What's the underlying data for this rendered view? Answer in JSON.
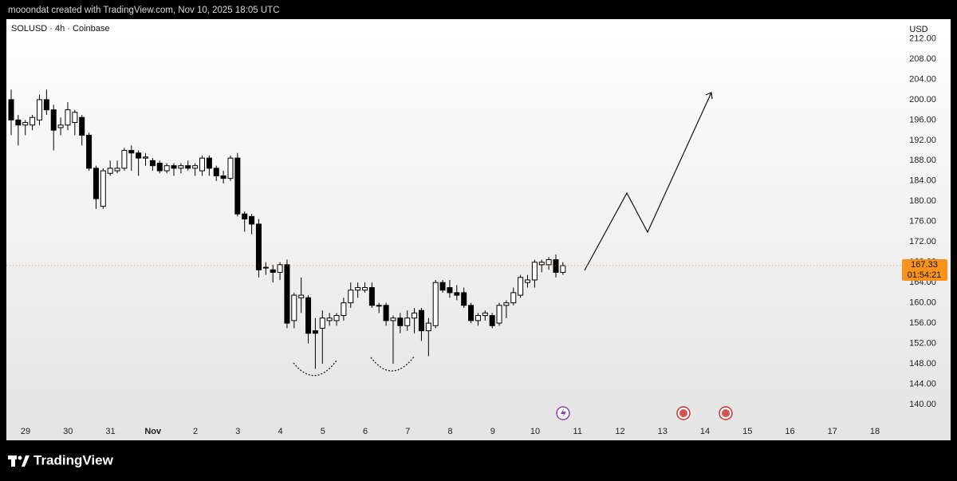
{
  "header": {
    "caption": "mooondat created with TradingView.com, Nov 10, 2025 18:05 UTC"
  },
  "chart_data": {
    "type": "candlestick",
    "title": "SOLUSD · 4h · Coinbase",
    "y_axis_label": "USD",
    "categories": [
      "29",
      "30",
      "31",
      "Nov",
      "2",
      "3",
      "4",
      "5",
      "6",
      "7",
      "8",
      "9",
      "10",
      "11",
      "12",
      "13",
      "14",
      "15",
      "16",
      "17",
      "18"
    ],
    "open": [
      200,
      196,
      195,
      195,
      196,
      200,
      198,
      194.5,
      195,
      195.5,
      196.5,
      193,
      186.5,
      179,
      185.5,
      186,
      186.5,
      190,
      189.5,
      188.5,
      188,
      187.5,
      186,
      187,
      186.5,
      187,
      186.5,
      186,
      188.5,
      186.5,
      185,
      184.5,
      188.5,
      177.5,
      177,
      175.5,
      167,
      166.5,
      166,
      167.5,
      156.5,
      161,
      161,
      154.5,
      155,
      156.5,
      156.5,
      157.5,
      160,
      162.5,
      162.5,
      163,
      159.5,
      159.5,
      156.5,
      157,
      155.5,
      157,
      158.5,
      154.5,
      155.5,
      164,
      163,
      162,
      162,
      159.5,
      156.5,
      157.5,
      157.5,
      156,
      159.5,
      160,
      161.5,
      164,
      164.5,
      167.5,
      167.5,
      168.5,
      166
    ],
    "high": [
      202,
      197,
      196,
      197,
      201,
      202,
      199,
      196.5,
      199.5,
      198,
      197,
      193.5,
      187,
      186.5,
      188,
      188,
      190.5,
      191,
      190,
      189.5,
      188.5,
      188,
      187.5,
      187.5,
      187.5,
      188,
      187.5,
      189,
      189,
      187,
      186,
      189,
      189.5,
      178,
      177.5,
      176.5,
      168,
      167.5,
      168,
      168.5,
      162,
      165,
      161.5,
      157,
      158.5,
      158,
      158,
      161,
      164,
      164,
      164,
      164,
      160,
      160,
      157.5,
      158,
      158.5,
      159,
      159,
      157,
      164.5,
      164.5,
      164.5,
      163.5,
      163,
      160,
      158,
      158.5,
      158,
      160,
      160.5,
      163,
      165.5,
      165.5,
      168.5,
      168.5,
      169,
      169.5,
      168
    ],
    "low": [
      193,
      191,
      193,
      194,
      195,
      197,
      190,
      193,
      194,
      193,
      191,
      186,
      178.5,
      178.5,
      185,
      185.5,
      186,
      186,
      185,
      187,
      186,
      185.5,
      185.5,
      185,
      185.5,
      186,
      185,
      185,
      185,
      184,
      183.5,
      184,
      177,
      174,
      173.5,
      165,
      165.5,
      164,
      164.5,
      155,
      155,
      158,
      152,
      147,
      148,
      155.5,
      155.5,
      156.5,
      159,
      161,
      162,
      159,
      158,
      155.5,
      148,
      154,
      154.5,
      154,
      152.5,
      149.5,
      155,
      162,
      161,
      160.5,
      159,
      156,
      155.5,
      156.5,
      155,
      155.5,
      157,
      159.5,
      161,
      163,
      163,
      166,
      166.5,
      165,
      165.5
    ],
    "close": [
      196,
      195,
      195.5,
      196.5,
      200,
      198,
      194,
      195,
      198,
      197.5,
      193,
      186.5,
      180.5,
      186,
      186.5,
      186.5,
      190,
      189.5,
      188.5,
      188.7,
      187,
      186,
      187,
      186.5,
      187,
      186.5,
      187,
      188.5,
      186.5,
      185,
      184.5,
      188.5,
      177.5,
      176.5,
      175.5,
      166.5,
      167,
      166,
      167.5,
      156,
      161.5,
      161.5,
      154,
      154,
      157,
      157,
      157.5,
      160,
      162.5,
      163,
      163,
      159.5,
      159.5,
      156.5,
      157,
      155.5,
      157,
      158,
      154.5,
      156,
      164,
      162.5,
      162,
      161.5,
      159.5,
      156.5,
      157.5,
      158,
      155.5,
      159.5,
      160,
      162,
      165,
      164.5,
      168,
      168,
      168.5,
      166,
      167.33
    ],
    "ylim": [
      132.93,
      215.85
    ],
    "yticks": [
      {
        "value": 140,
        "label": "140.00"
      },
      {
        "value": 144,
        "label": "144.00"
      },
      {
        "value": 148,
        "label": "148.00"
      },
      {
        "value": 152,
        "label": "152.00"
      },
      {
        "value": 156,
        "label": "156.00"
      },
      {
        "value": 160,
        "label": "160.00"
      },
      {
        "value": 164,
        "label": "164.00"
      },
      {
        "value": 168,
        "label": "168.00"
      },
      {
        "value": 172,
        "label": "172.00"
      },
      {
        "value": 176,
        "label": "176.00"
      },
      {
        "value": 180,
        "label": "180.00"
      },
      {
        "value": 184,
        "label": "184.00"
      },
      {
        "value": 188,
        "label": "188.00"
      },
      {
        "value": 192,
        "label": "192.00"
      },
      {
        "value": 196,
        "label": "196.00"
      },
      {
        "value": 200,
        "label": "200.00"
      },
      {
        "value": 204,
        "label": "204.00"
      },
      {
        "value": 208,
        "label": "208.00"
      },
      {
        "value": 212,
        "label": "212.00"
      }
    ],
    "last_price": 167.33,
    "countdown": "01:54:21",
    "colors": {
      "up": "#ffffff",
      "down": "#000000",
      "outline": "#000000",
      "last_price": "#f7931a"
    }
  },
  "footer": {
    "brand": "TradingView"
  }
}
